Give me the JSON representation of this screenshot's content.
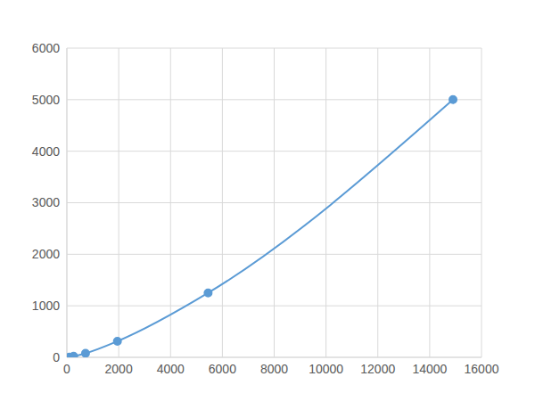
{
  "chart_data": {
    "type": "line",
    "x": [
      90,
      260,
      720,
      1950,
      5450,
      14900
    ],
    "values": [
      5,
      20,
      78,
      312,
      1250,
      5000
    ],
    "color": "#5b9bd5",
    "marker": "circle",
    "line_style": "smooth",
    "xlim": [
      0,
      16000
    ],
    "xticks": [
      0,
      2000,
      4000,
      6000,
      8000,
      10000,
      12000,
      14000,
      16000
    ],
    "ylim": [
      0,
      6000
    ],
    "yticks": [
      0,
      1000,
      2000,
      3000,
      4000,
      5000,
      6000
    ],
    "grid": true
  }
}
